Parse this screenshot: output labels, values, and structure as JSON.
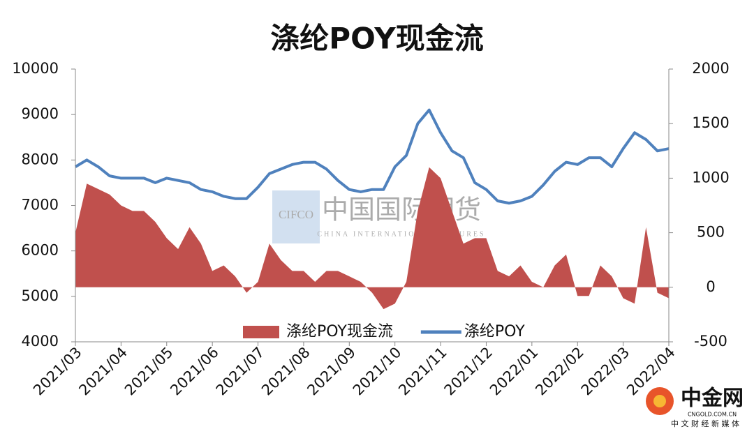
{
  "chart_data": {
    "type": "line",
    "title": "涤纶POY现金流",
    "categories": [
      "2021/03",
      null,
      null,
      null,
      "2021/04",
      null,
      null,
      null,
      "2021/05",
      null,
      null,
      null,
      "2021/06",
      null,
      null,
      null,
      "2021/07",
      null,
      null,
      null,
      "2021/08",
      null,
      null,
      null,
      "2021/09",
      null,
      null,
      null,
      "2021/10",
      null,
      null,
      null,
      "2021/11",
      null,
      null,
      null,
      "2021/12",
      null,
      null,
      null,
      "2022/01",
      null,
      null,
      null,
      "2022/02",
      null,
      null,
      null,
      "2022/03",
      null,
      null,
      null,
      "2022/04"
    ],
    "series": [
      {
        "name": "涤纶POY现金流",
        "type": "area",
        "axis": "y2",
        "color": "#c0504d",
        "values": [
          500,
          950,
          900,
          850,
          750,
          700,
          700,
          600,
          450,
          350,
          550,
          400,
          150,
          200,
          100,
          -50,
          50,
          400,
          250,
          150,
          150,
          50,
          150,
          150,
          100,
          50,
          -50,
          -200,
          -150,
          50,
          700,
          1100,
          1000,
          700,
          400,
          450,
          450,
          150,
          100,
          200,
          50,
          0,
          200,
          300,
          -80,
          -80,
          200,
          100,
          -100,
          -150,
          550,
          -50,
          -100
        ]
      },
      {
        "name": "涤纶POY",
        "type": "line",
        "axis": "y",
        "color": "#4f81bd",
        "values": [
          7850,
          8000,
          7850,
          7650,
          7600,
          7600,
          7600,
          7500,
          7600,
          7550,
          7500,
          7350,
          7300,
          7200,
          7150,
          7150,
          7400,
          7700,
          7800,
          7900,
          7950,
          7950,
          7800,
          7550,
          7350,
          7300,
          7350,
          7350,
          7850,
          8100,
          8800,
          9100,
          8600,
          8200,
          8050,
          7500,
          7350,
          7100,
          7050,
          7100,
          7200,
          7450,
          7750,
          7950,
          7900,
          8050,
          8050,
          7850,
          8250,
          8600,
          8450,
          8200,
          8250
        ]
      }
    ],
    "ylim": [
      4000,
      10000
    ],
    "yticks": [
      4000,
      5000,
      6000,
      7000,
      8000,
      9000,
      10000
    ],
    "y2lim": [
      -500,
      2000
    ],
    "y2ticks": [
      -500,
      0,
      500,
      1000,
      1500,
      2000
    ],
    "grid": false,
    "legend": "bottom"
  },
  "watermark": {
    "logo": "CIFCO",
    "name": "中国国际期货",
    "subtitle": "CHINA INTERNATIONAL FUTURES"
  },
  "branding": {
    "name": "中金网",
    "site": "CNGOLD.COM.CN",
    "slogan": "中 文 财 经 新 媒 体"
  }
}
